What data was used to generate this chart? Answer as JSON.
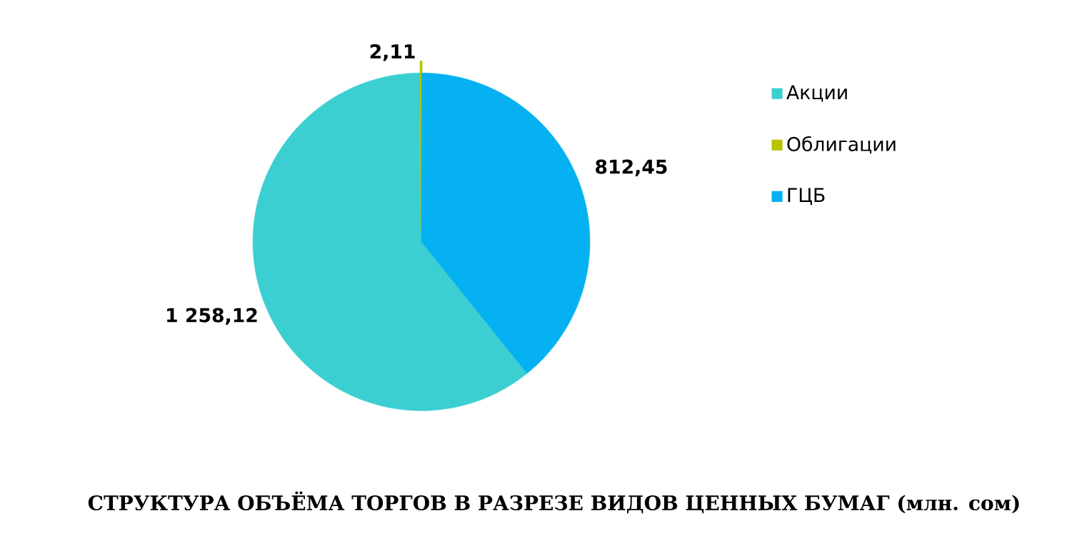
{
  "chart_data": {
    "type": "pie",
    "title": "СТРУКТУРА ОБЪЁМА ТОРГОВ В РАЗРЕЗЕ ВИДОВ ЦЕННЫХ БУМАГ  (млн. сом)",
    "categories": [
      "Акции",
      "Облигации",
      "ГЦБ"
    ],
    "values": [
      1258.12,
      2.11,
      812.45
    ],
    "value_labels": [
      "1 258,12",
      "2,11",
      "812,45"
    ],
    "colors": [
      "#3ccfd2",
      "#b8c400",
      "#05b1f0"
    ],
    "legend": "right"
  }
}
